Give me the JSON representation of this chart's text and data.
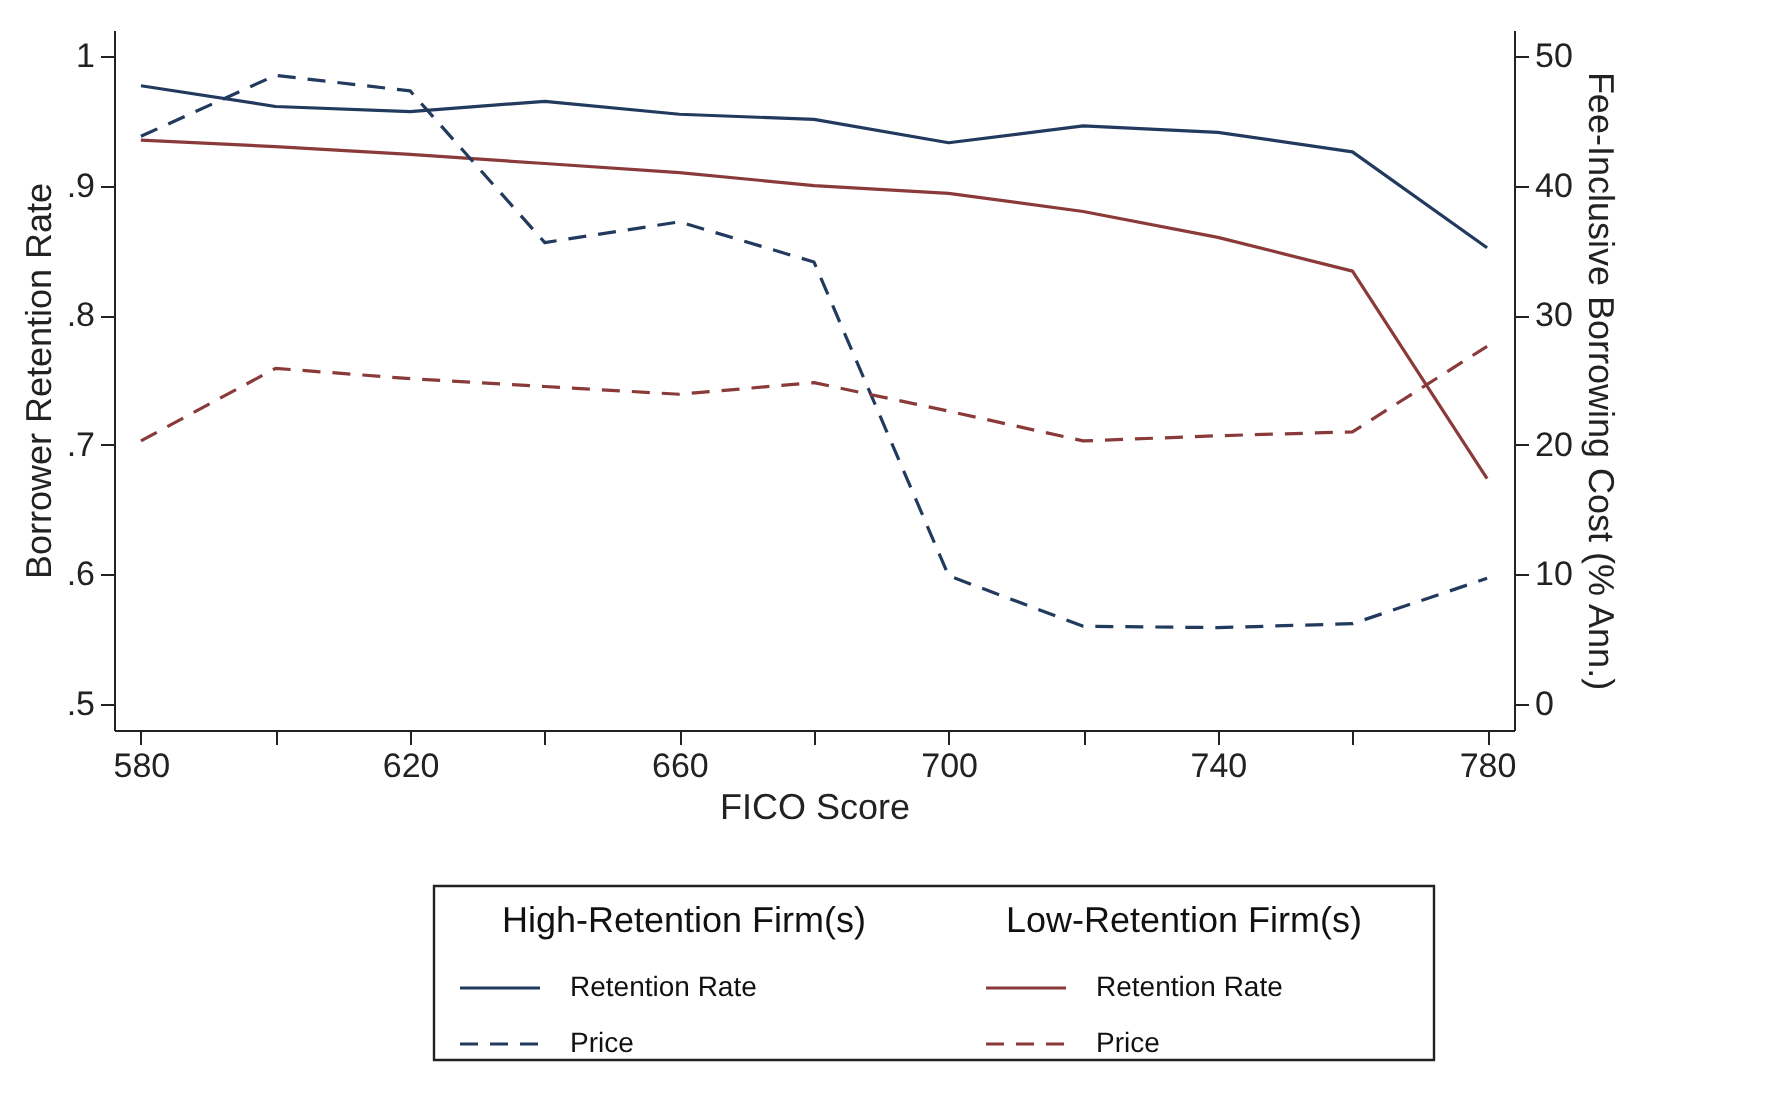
{
  "chart_data": {
    "type": "line",
    "xlabel": "FICO Score",
    "ylabel": "Borrower Retention Rate",
    "y2label": "Fee-Inclusive Borrowing Cost (% Ann.)",
    "x": [
      580,
      600,
      620,
      640,
      660,
      680,
      700,
      720,
      740,
      760,
      780
    ],
    "xlim": [
      576,
      784
    ],
    "xticks": [
      580,
      {
        "value": 600,
        "label": null
      },
      620,
      {
        "value": 640,
        "label": null
      },
      660,
      {
        "value": 680,
        "label": null
      },
      700,
      {
        "value": 720,
        "label": null
      },
      740,
      {
        "value": 760,
        "label": null
      },
      780
    ],
    "ylim": [
      0.48,
      1.02
    ],
    "yticks": [
      {
        "value": 0.5,
        "label": ".5"
      },
      {
        "value": 0.6,
        "label": ".6"
      },
      {
        "value": 0.7,
        "label": ".7"
      },
      {
        "value": 0.8,
        "label": ".8"
      },
      {
        "value": 0.9,
        "label": ".9"
      },
      {
        "value": 1,
        "label": "1"
      }
    ],
    "y2lim": [
      -2,
      52
    ],
    "y2ticks": [
      0,
      10,
      20,
      30,
      40,
      50
    ],
    "grid": false,
    "legend": "bottom",
    "marker": "none",
    "annotations": [
      "High-Retention Firm(s)",
      "Low-Retention Firm(s)"
    ],
    "series": [
      {
        "name": "Retention Rate",
        "color": "#223a5e",
        "line_style": "solid",
        "values": [
          0.977,
          0.961,
          0.957,
          0.965,
          0.955,
          0.951,
          0.933,
          0.946,
          0.941,
          0.926,
          0.852
        ]
      },
      {
        "name": "Price",
        "color": "#223a5e",
        "line_style": "dashed",
        "axis": "y2",
        "values": [
          43.8,
          48.5,
          47.3,
          35.6,
          37.2,
          34.1,
          9.9,
          6.0,
          5.9,
          6.2,
          9.7
        ]
      },
      {
        "name": "Retention Rate",
        "color": "#8b3a3a",
        "line_style": "solid",
        "values": [
          0.935,
          0.93,
          0.924,
          0.917,
          0.91,
          0.9,
          0.894,
          0.88,
          0.86,
          0.834,
          0.674
        ]
      },
      {
        "name": "Price",
        "color": "#8b3a3a",
        "line_style": "dashed",
        "axis": "y2",
        "values": [
          20.3,
          25.9,
          25.1,
          24.5,
          23.9,
          24.8,
          22.6,
          20.3,
          20.7,
          21.0,
          27.6
        ]
      }
    ]
  }
}
